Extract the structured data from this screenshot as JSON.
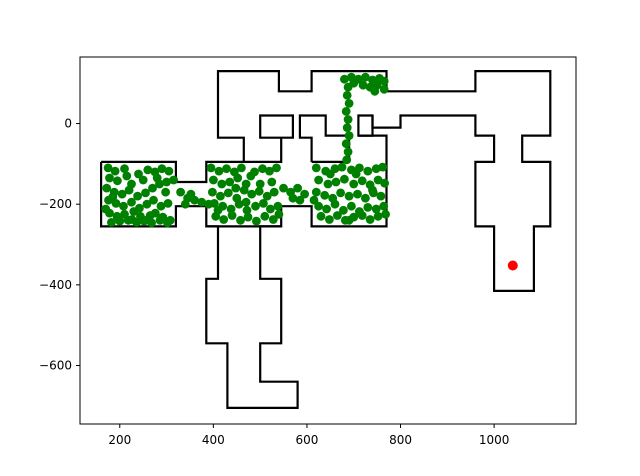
{
  "chart_data": {
    "type": "scatter",
    "title": "",
    "xlabel": "",
    "ylabel": "",
    "xlim": [
      115,
      1175
    ],
    "ylim": [
      -745,
      165
    ],
    "xticks": [
      200,
      400,
      600,
      800,
      1000
    ],
    "yticks": [
      0,
      -200,
      -400,
      -600
    ],
    "grid": false,
    "colors": {
      "walls": "#000000",
      "explored": "#008000",
      "target": "#ff0000",
      "frame": "#000000"
    },
    "walls": [
      [
        [
          160,
          -95
        ],
        [
          320,
          -95
        ],
        [
          320,
          -145
        ],
        [
          385,
          -145
        ],
        [
          385,
          -95
        ],
        [
          465,
          -95
        ],
        [
          465,
          -35
        ],
        [
          410,
          -35
        ],
        [
          410,
          130
        ],
        [
          540,
          130
        ],
        [
          540,
          80
        ],
        [
          610,
          80
        ],
        [
          610,
          130
        ],
        [
          770,
          130
        ],
        [
          770,
          80
        ],
        [
          960,
          80
        ],
        [
          960,
          130
        ],
        [
          1120,
          130
        ],
        [
          1120,
          -30
        ],
        [
          1060,
          -30
        ],
        [
          1060,
          -95
        ],
        [
          1120,
          -95
        ],
        [
          1120,
          -255
        ],
        [
          1085,
          -255
        ],
        [
          1085,
          -415
        ],
        [
          1000,
          -415
        ],
        [
          1000,
          -255
        ],
        [
          960,
          -255
        ],
        [
          960,
          -95
        ],
        [
          1000,
          -95
        ],
        [
          1000,
          -30
        ],
        [
          960,
          -30
        ],
        [
          960,
          20
        ],
        [
          800,
          20
        ],
        [
          800,
          -10
        ],
        [
          740,
          -10
        ],
        [
          740,
          20
        ],
        [
          710,
          20
        ],
        [
          710,
          -30
        ],
        [
          770,
          -30
        ],
        [
          770,
          -95
        ],
        [
          770,
          -255
        ],
        [
          610,
          -255
        ],
        [
          610,
          -205
        ],
        [
          545,
          -205
        ],
        [
          545,
          -255
        ],
        [
          465,
          -255
        ],
        [
          465,
          -255
        ],
        [
          410,
          -255
        ],
        [
          385,
          -255
        ],
        [
          385,
          -205
        ],
        [
          320,
          -205
        ],
        [
          320,
          -255
        ],
        [
          160,
          -255
        ],
        [
          160,
          -95
        ]
      ],
      [
        [
          385,
          -255
        ],
        [
          410,
          -255
        ],
        [
          410,
          -385
        ],
        [
          385,
          -385
        ],
        [
          385,
          -545
        ],
        [
          430,
          -545
        ],
        [
          430,
          -705
        ],
        [
          580,
          -705
        ],
        [
          580,
          -640
        ],
        [
          500,
          -640
        ],
        [
          500,
          -545
        ],
        [
          545,
          -545
        ],
        [
          545,
          -385
        ],
        [
          500,
          -385
        ],
        [
          500,
          -255
        ],
        [
          545,
          -255
        ]
      ],
      [
        [
          465,
          -95
        ],
        [
          545,
          -95
        ],
        [
          545,
          -35
        ],
        [
          500,
          -35
        ],
        [
          500,
          20
        ],
        [
          570,
          20
        ],
        [
          570,
          -35
        ],
        [
          545,
          -35
        ]
      ],
      [
        [
          610,
          -95
        ],
        [
          690,
          -95
        ],
        [
          690,
          -30
        ],
        [
          640,
          -30
        ],
        [
          640,
          20
        ],
        [
          585,
          20
        ],
        [
          585,
          -35
        ],
        [
          610,
          -35
        ],
        [
          610,
          -95
        ]
      ],
      [
        [
          740,
          20
        ],
        [
          740,
          -30
        ],
        [
          710,
          -30
        ]
      ]
    ],
    "explored_points": [
      [
        175,
        -110
      ],
      [
        190,
        -118
      ],
      [
        210,
        -112
      ],
      [
        178,
        -135
      ],
      [
        195,
        -142
      ],
      [
        225,
        -150
      ],
      [
        240,
        -125
      ],
      [
        260,
        -115
      ],
      [
        275,
        -120
      ],
      [
        290,
        -112
      ],
      [
        305,
        -118
      ],
      [
        172,
        -160
      ],
      [
        188,
        -170
      ],
      [
        205,
        -175
      ],
      [
        220,
        -165
      ],
      [
        238,
        -180
      ],
      [
        255,
        -172
      ],
      [
        270,
        -160
      ],
      [
        285,
        -150
      ],
      [
        300,
        -145
      ],
      [
        315,
        -140
      ],
      [
        176,
        -190
      ],
      [
        192,
        -198
      ],
      [
        208,
        -205
      ],
      [
        225,
        -195
      ],
      [
        242,
        -210
      ],
      [
        258,
        -200
      ],
      [
        272,
        -190
      ],
      [
        288,
        -205
      ],
      [
        303,
        -198
      ],
      [
        178,
        -222
      ],
      [
        194,
        -230
      ],
      [
        210,
        -225
      ],
      [
        226,
        -238
      ],
      [
        244,
        -230
      ],
      [
        260,
        -238
      ],
      [
        276,
        -222
      ],
      [
        292,
        -232
      ],
      [
        308,
        -240
      ],
      [
        182,
        -245
      ],
      [
        200,
        -242
      ],
      [
        218,
        -240
      ],
      [
        236,
        -245
      ],
      [
        252,
        -242
      ],
      [
        268,
        -246
      ],
      [
        286,
        -240
      ],
      [
        302,
        -246
      ],
      [
        170,
        -212
      ],
      [
        185,
        -182
      ],
      [
        215,
        -130
      ],
      [
        250,
        -140
      ],
      [
        280,
        -135
      ],
      [
        298,
        -170
      ],
      [
        230,
        -218
      ],
      [
        265,
        -228
      ],
      [
        330,
        -170
      ],
      [
        345,
        -185
      ],
      [
        360,
        -190
      ],
      [
        375,
        -195
      ],
      [
        390,
        -200
      ],
      [
        340,
        -200
      ],
      [
        352,
        -175
      ],
      [
        395,
        -110
      ],
      [
        412,
        -118
      ],
      [
        428,
        -112
      ],
      [
        445,
        -120
      ],
      [
        460,
        -110
      ],
      [
        400,
        -140
      ],
      [
        418,
        -150
      ],
      [
        435,
        -145
      ],
      [
        452,
        -135
      ],
      [
        470,
        -150
      ],
      [
        488,
        -120
      ],
      [
        505,
        -112
      ],
      [
        520,
        -118
      ],
      [
        535,
        -110
      ],
      [
        398,
        -170
      ],
      [
        415,
        -180
      ],
      [
        432,
        -172
      ],
      [
        450,
        -185
      ],
      [
        466,
        -165
      ],
      [
        482,
        -175
      ],
      [
        498,
        -168
      ],
      [
        515,
        -180
      ],
      [
        530,
        -170
      ],
      [
        402,
        -198
      ],
      [
        420,
        -205
      ],
      [
        438,
        -212
      ],
      [
        455,
        -200
      ],
      [
        472,
        -215
      ],
      [
        490,
        -205
      ],
      [
        507,
        -198
      ],
      [
        522,
        -212
      ],
      [
        538,
        -205
      ],
      [
        405,
        -230
      ],
      [
        422,
        -238
      ],
      [
        440,
        -228
      ],
      [
        458,
        -240
      ],
      [
        474,
        -232
      ],
      [
        492,
        -242
      ],
      [
        510,
        -230
      ],
      [
        528,
        -238
      ],
      [
        540,
        -225
      ],
      [
        410,
        -215
      ],
      [
        448,
        -160
      ],
      [
        480,
        -130
      ],
      [
        500,
        -150
      ],
      [
        525,
        -145
      ],
      [
        470,
        -195
      ],
      [
        550,
        -160
      ],
      [
        565,
        -170
      ],
      [
        580,
        -160
      ],
      [
        595,
        -175
      ],
      [
        585,
        -190
      ],
      [
        570,
        -185
      ],
      [
        620,
        -110
      ],
      [
        640,
        -118
      ],
      [
        660,
        -112
      ],
      [
        675,
        -108
      ],
      [
        695,
        -115
      ],
      [
        712,
        -110
      ],
      [
        730,
        -118
      ],
      [
        748,
        -112
      ],
      [
        762,
        -108
      ],
      [
        625,
        -140
      ],
      [
        645,
        -150
      ],
      [
        662,
        -145
      ],
      [
        680,
        -138
      ],
      [
        700,
        -150
      ],
      [
        718,
        -142
      ],
      [
        735,
        -152
      ],
      [
        752,
        -140
      ],
      [
        766,
        -148
      ],
      [
        620,
        -170
      ],
      [
        638,
        -178
      ],
      [
        655,
        -185
      ],
      [
        672,
        -172
      ],
      [
        690,
        -180
      ],
      [
        708,
        -175
      ],
      [
        725,
        -185
      ],
      [
        742,
        -172
      ],
      [
        758,
        -180
      ],
      [
        625,
        -205
      ],
      [
        642,
        -212
      ],
      [
        660,
        -200
      ],
      [
        678,
        -215
      ],
      [
        695,
        -205
      ],
      [
        712,
        -218
      ],
      [
        730,
        -208
      ],
      [
        748,
        -212
      ],
      [
        764,
        -205
      ],
      [
        630,
        -230
      ],
      [
        648,
        -238
      ],
      [
        665,
        -228
      ],
      [
        682,
        -240
      ],
      [
        700,
        -232
      ],
      [
        718,
        -228
      ],
      [
        735,
        -238
      ],
      [
        752,
        -230
      ],
      [
        768,
        -225
      ],
      [
        615,
        -190
      ],
      [
        650,
        -125
      ],
      [
        705,
        -125
      ],
      [
        740,
        -165
      ],
      [
        690,
        -240
      ],
      [
        685,
        -90
      ],
      [
        688,
        -70
      ],
      [
        684,
        -50
      ],
      [
        690,
        -30
      ],
      [
        686,
        -10
      ],
      [
        688,
        10
      ],
      [
        684,
        30
      ],
      [
        690,
        50
      ],
      [
        686,
        70
      ],
      [
        688,
        90
      ],
      [
        680,
        110
      ],
      [
        695,
        115
      ],
      [
        710,
        110
      ],
      [
        725,
        115
      ],
      [
        740,
        108
      ],
      [
        755,
        112
      ],
      [
        765,
        105
      ],
      [
        750,
        95
      ],
      [
        735,
        90
      ],
      [
        720,
        95
      ],
      [
        765,
        85
      ],
      [
        745,
        80
      ],
      [
        700,
        100
      ]
    ],
    "target_point": [
      1040,
      -352
    ]
  }
}
